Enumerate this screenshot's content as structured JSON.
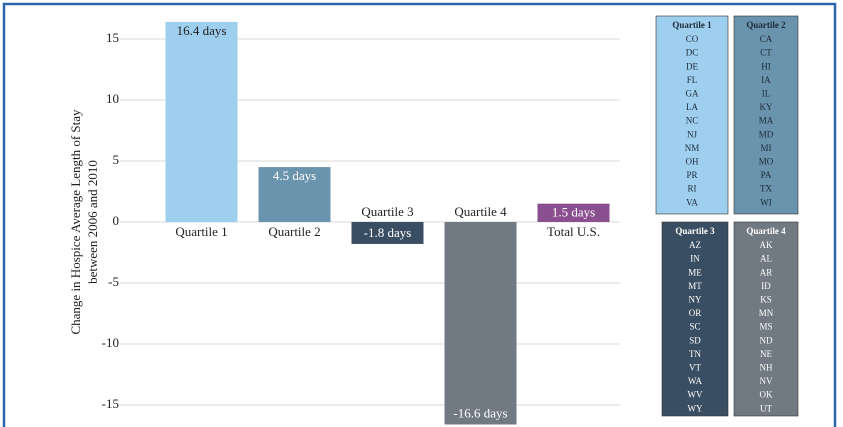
{
  "chart_data": {
    "type": "bar",
    "y_label": [
      "Change in Hospice Average Length of Stay",
      "between 2006 and 2010"
    ],
    "categories": [
      "Quartile 1",
      "Quartile 2",
      "Quartile 3",
      "Quartile 4",
      "Total U.S."
    ],
    "values": [
      16.4,
      4.5,
      -1.8,
      -16.6,
      1.5
    ],
    "value_labels": [
      "16.4 days",
      "4.5 days",
      "-1.8 days",
      "-16.6 days",
      "1.5 days"
    ],
    "colors": [
      "#9fcfee",
      "#6a93ad",
      "#3a4e63",
      "#717a83",
      "#8a4f8e"
    ],
    "ylim": [
      -16.7,
      17
    ],
    "yticks": [
      15,
      10,
      5,
      0,
      -5,
      -10,
      -15
    ],
    "grid": true
  },
  "state_groups": [
    {
      "name": "Quartile 1",
      "color": "#9fcfee",
      "states": [
        "CO",
        "DC",
        "DE",
        "FL",
        "GA",
        "LA",
        "NC",
        "NJ",
        "NM",
        "OH",
        "PR",
        "RI",
        "VA"
      ]
    },
    {
      "name": "Quartile 2",
      "color": "#6a93ad",
      "states": [
        "CA",
        "CT",
        "HI",
        "IA",
        "IL",
        "KY",
        "MA",
        "MD",
        "MI",
        "MO",
        "PA",
        "TX",
        "WI"
      ]
    },
    {
      "name": "Quartile 3",
      "color": "#3a4e63",
      "states": [
        "AZ",
        "IN",
        "ME",
        "MT",
        "NY",
        "OR",
        "SC",
        "SD",
        "TN",
        "VT",
        "WA",
        "WV",
        "WY"
      ]
    },
    {
      "name": "Quartile 4",
      "color": "#717a83",
      "states": [
        "AK",
        "AL",
        "AR",
        "ID",
        "KS",
        "MN",
        "MS",
        "ND",
        "NE",
        "NH",
        "NV",
        "OK",
        "UT"
      ]
    }
  ]
}
